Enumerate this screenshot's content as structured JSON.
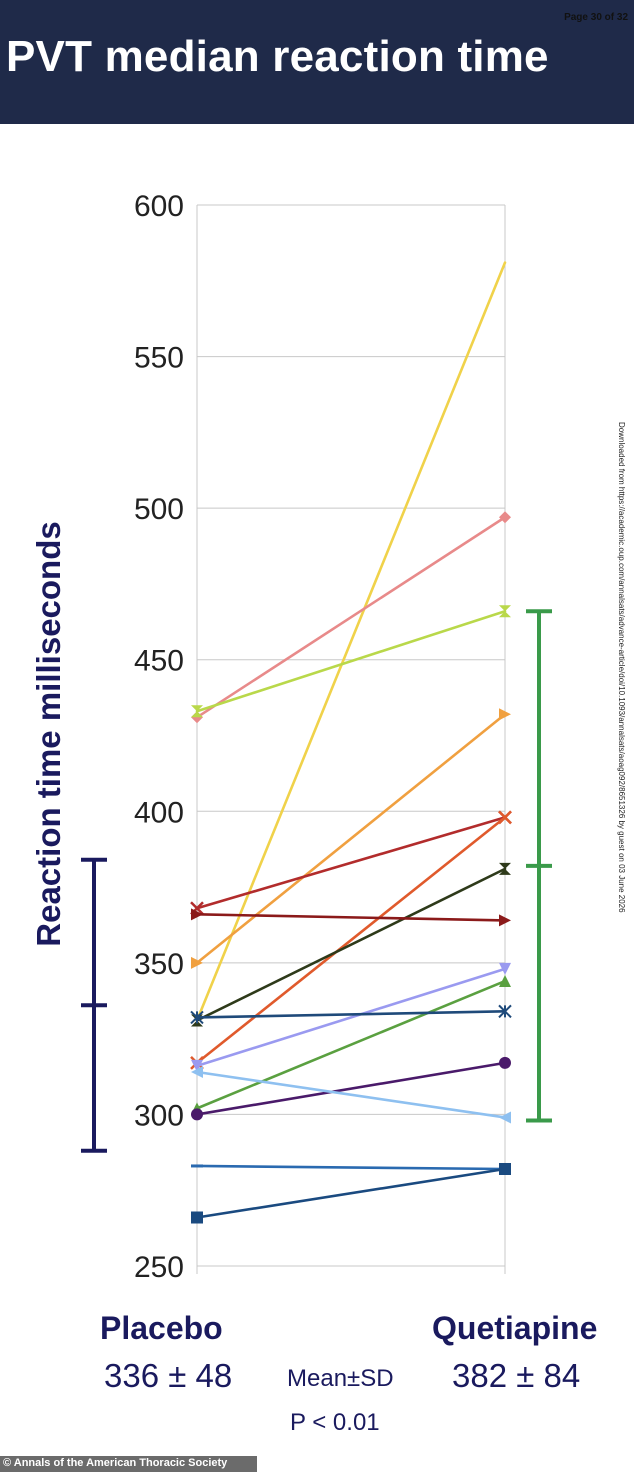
{
  "header": {
    "page_indicator": "Page 30 of 32",
    "title": "PVT median reaction time"
  },
  "side_note": "Downloaded from https://academic.oup.com/annalsats/advance-article/doi/10.1093/annalsats/aoag092/8651326 by guest on 03 June 2026",
  "footer": {
    "credit": "© Annals of the American Thoracic Society"
  },
  "labels": {
    "placebo": "Placebo",
    "quetiapine": "Quetiapine",
    "placebo_stat": "336 ± 48",
    "quetiapine_stat": "382 ± 84",
    "mean_sd": "Mean±SD",
    "p_value": "P < 0.01"
  },
  "chart_data": {
    "type": "line",
    "title": "PVT median reaction time",
    "ylabel": "Reaction time milliseconds",
    "xlabel": "",
    "categories": [
      "Placebo",
      "Quetiapine"
    ],
    "ylim": [
      250,
      600
    ],
    "yticks": [
      "250",
      "300",
      "350",
      "400",
      "450",
      "500",
      "550",
      "600"
    ],
    "grid": true,
    "series": [
      {
        "values": [
          331,
          581
        ],
        "color": "#f0d24a",
        "marker": "none"
      },
      {
        "values": [
          431,
          497
        ],
        "color": "#e88a8a",
        "marker": "diamond"
      },
      {
        "values": [
          433,
          466
        ],
        "color": "#b9d84a",
        "marker": "hourglass"
      },
      {
        "values": [
          350,
          432
        ],
        "color": "#f0a040",
        "marker": "tri-right"
      },
      {
        "values": [
          368,
          398
        ],
        "color": "#b22c2c",
        "marker": "x"
      },
      {
        "values": [
          317,
          398
        ],
        "color": "#e05a2c",
        "marker": "x"
      },
      {
        "values": [
          331,
          381
        ],
        "color": "#2e3a1a",
        "marker": "hourglass"
      },
      {
        "values": [
          366,
          364
        ],
        "color": "#8b1a1a",
        "marker": "tri-right"
      },
      {
        "values": [
          316,
          348
        ],
        "color": "#9a9af0",
        "marker": "tri-down"
      },
      {
        "values": [
          302,
          344
        ],
        "color": "#5aa040",
        "marker": "triangle"
      },
      {
        "values": [
          332,
          334
        ],
        "color": "#1f4a7a",
        "marker": "asterisk"
      },
      {
        "values": [
          300,
          317
        ],
        "color": "#4a1a6a",
        "marker": "circle"
      },
      {
        "values": [
          314,
          299
        ],
        "color": "#8ec0f0",
        "marker": "tri-left"
      },
      {
        "values": [
          283,
          282
        ],
        "color": "#2a6ab0",
        "marker": "dash"
      },
      {
        "values": [
          266,
          282
        ],
        "color": "#1a4a80",
        "marker": "square"
      }
    ],
    "error_bars": [
      {
        "group": "Placebo",
        "mean": 336,
        "sd": 48,
        "color": "#1a1a5e"
      },
      {
        "group": "Quetiapine",
        "mean": 382,
        "sd": 84,
        "color": "#3a9a4a"
      }
    ]
  }
}
